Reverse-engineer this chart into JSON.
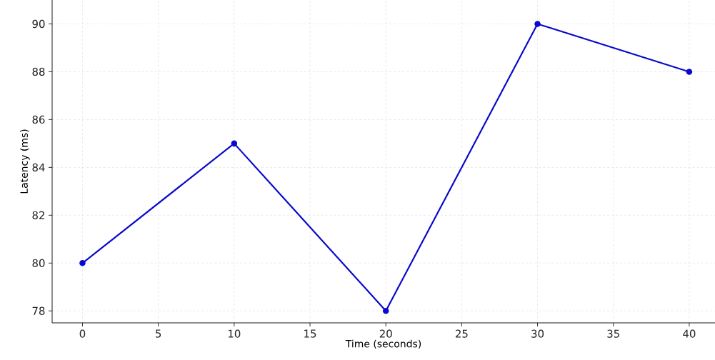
{
  "chart_data": {
    "type": "line",
    "xlabel": "Time (seconds)",
    "ylabel": "Latency (ms)",
    "x": [
      0,
      10,
      20,
      30,
      40
    ],
    "series": [
      {
        "color": "#0a0acc",
        "values": [
          80,
          85,
          78,
          90,
          88
        ]
      }
    ],
    "xlim": [
      -2,
      41.7
    ],
    "ylim": [
      77.5,
      91
    ],
    "xticks": [
      0,
      5,
      10,
      15,
      20,
      25,
      30,
      35,
      40
    ],
    "yticks": [
      78,
      80,
      82,
      84,
      86,
      88,
      90
    ],
    "grid": true,
    "marker": "circle",
    "line_style": "solid"
  }
}
